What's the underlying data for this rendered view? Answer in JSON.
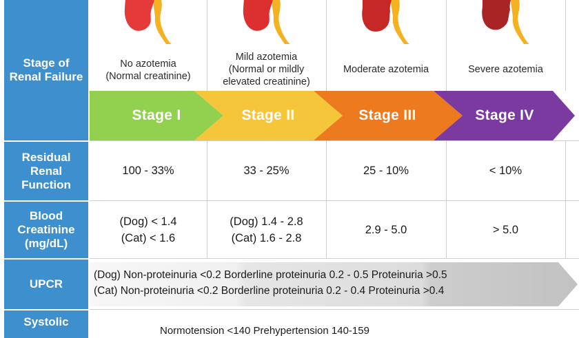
{
  "row_headers": {
    "stage": "Stage of Renal Failure",
    "residual": "Residual Renal Function",
    "creatinine": "Blood Creatinine (mg/dL)",
    "upcr": "UPCR",
    "systolic": "Systolic"
  },
  "stages": [
    {
      "label": "Stage I",
      "description": "No azotemia\n(Normal creatinine)",
      "residual": "100 - 33%",
      "creatinine": "(Dog) < 1.4\n(Cat) < 1.6",
      "color": "#92d050"
    },
    {
      "label": "Stage II",
      "description": "Mild azotemia\n(Normal or mildly\nelevated creatinine)",
      "residual": "33 - 25%",
      "creatinine": "(Dog) 1.4 - 2.8\n(Cat) 1.6 - 2.8",
      "color": "#f5c53a"
    },
    {
      "label": "Stage III",
      "description": "Moderate azotemia",
      "residual": "25 - 10%",
      "creatinine": "2.9 - 5.0",
      "color": "#ee7a1f"
    },
    {
      "label": "Stage IV",
      "description": "Severe azotemia",
      "residual": "< 10%",
      "creatinine": "> 5.0",
      "color": "#7a3aa0"
    }
  ],
  "upcr": {
    "dog": "(Dog) Non-proteinuria <0.2  Borderline proteinuria 0.2 - 0.5  Proteinuria >0.5",
    "cat": "(Cat) Non-proteinuria <0.2  Borderline proteinuria 0.2 - 0.4  Proteinuria >0.4"
  },
  "systolic_partial": "Normotension <140     Prehypertension 140-159"
}
